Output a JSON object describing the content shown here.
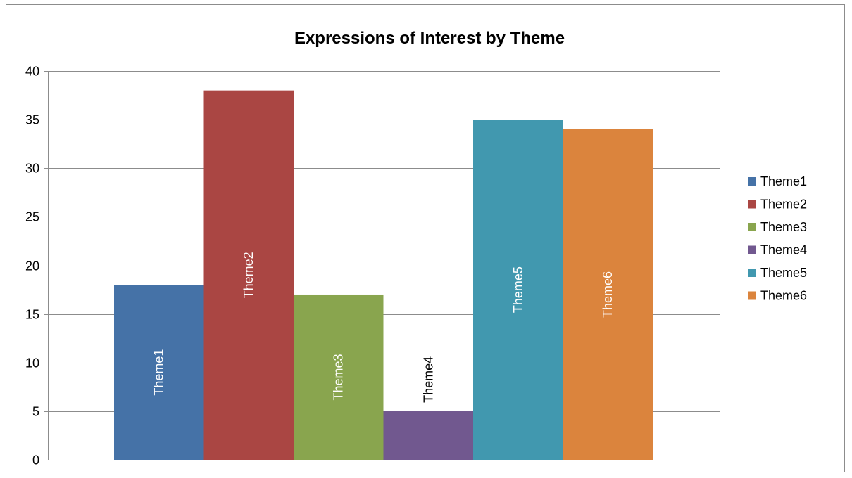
{
  "chart_data": {
    "type": "bar",
    "title": "Expressions of Interest by Theme",
    "xlabel": "",
    "ylabel": "",
    "categories": [
      "Theme1",
      "Theme2",
      "Theme3",
      "Theme4",
      "Theme5",
      "Theme6"
    ],
    "values": [
      18,
      38,
      17,
      5,
      35,
      34
    ],
    "colors": [
      "#4572a7",
      "#aa4643",
      "#89a54e",
      "#71588f",
      "#4198af",
      "#db843d"
    ],
    "data_label_colors": [
      "#ffffff",
      "#ffffff",
      "#ffffff",
      "#000000",
      "#ffffff",
      "#ffffff"
    ],
    "ylim": [
      0,
      40
    ],
    "yticks": [
      0,
      5,
      10,
      15,
      20,
      25,
      30,
      35,
      40
    ],
    "grid": true,
    "legend": {
      "placement": "right",
      "entries": [
        "Theme1",
        "Theme2",
        "Theme3",
        "Theme4",
        "Theme5",
        "Theme6"
      ]
    }
  }
}
